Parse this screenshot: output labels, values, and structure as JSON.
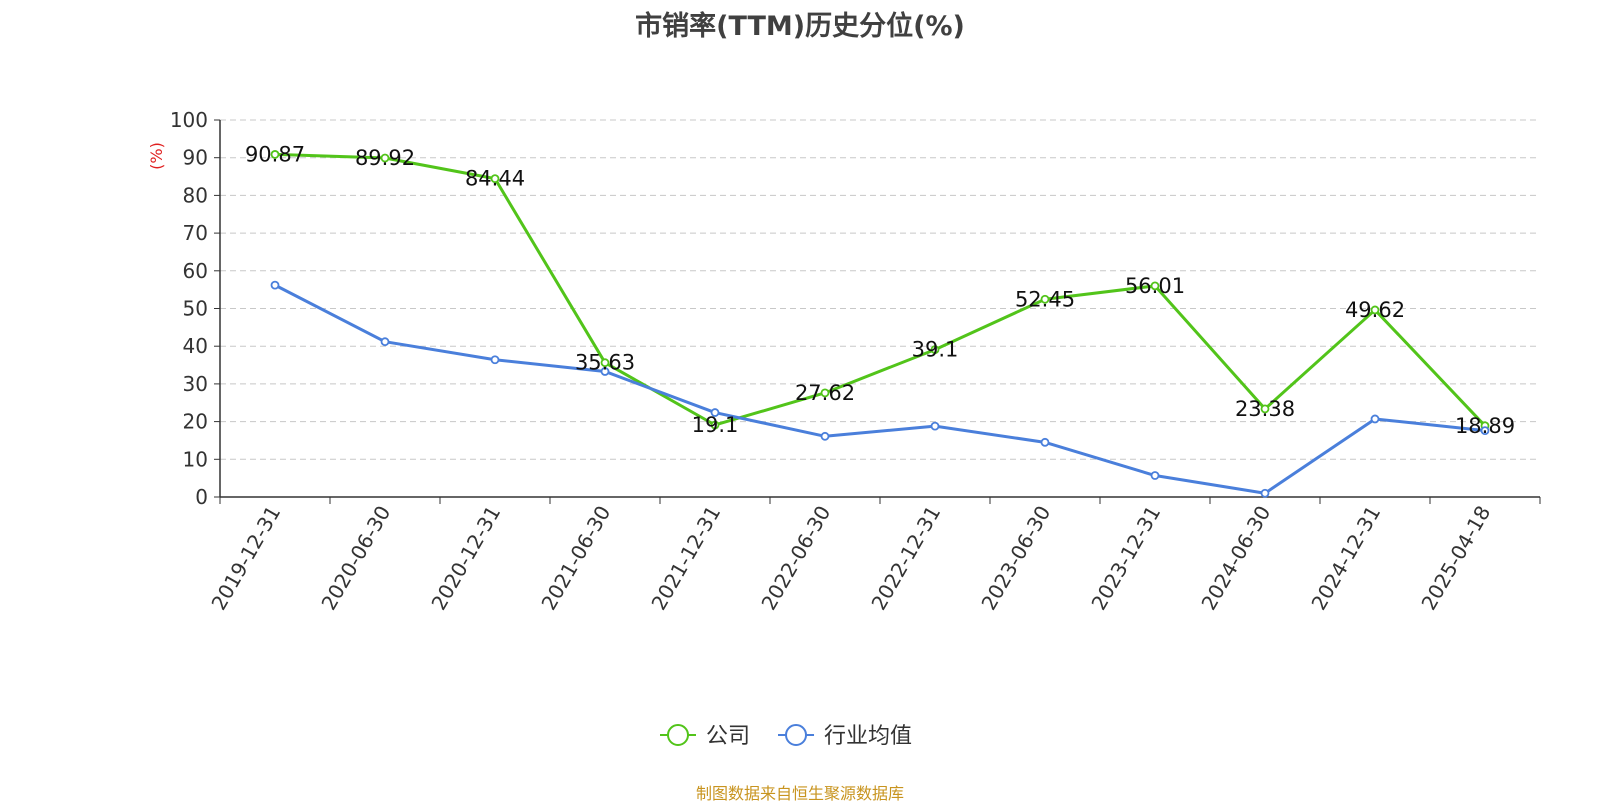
{
  "chart_data": {
    "type": "line",
    "title": "市销率(TTM)历史分位(%)",
    "ylabel": "(%)",
    "ylim": [
      0,
      100
    ],
    "yticks": [
      0,
      10,
      20,
      30,
      40,
      50,
      60,
      70,
      80,
      90,
      100
    ],
    "categories": [
      "2019-12-31",
      "2020-06-30",
      "2020-12-31",
      "2021-06-30",
      "2021-12-31",
      "2022-06-30",
      "2022-12-31",
      "2023-06-30",
      "2023-12-31",
      "2024-06-30",
      "2024-12-31",
      "2025-04-18"
    ],
    "series": [
      {
        "name": "公司",
        "color": "#52c41a",
        "labeled": true,
        "values": [
          90.87,
          89.92,
          84.44,
          35.63,
          19.1,
          27.62,
          39.1,
          52.45,
          56.01,
          23.38,
          49.62,
          18.89
        ]
      },
      {
        "name": "行业均值",
        "color": "#4a7fdb",
        "labeled": false,
        "values": [
          56.2,
          41.2,
          36.4,
          33.3,
          22.4,
          16.1,
          18.8,
          14.5,
          5.7,
          1.0,
          20.7,
          17.6
        ]
      }
    ],
    "grid": true,
    "legend_position": "bottom-center"
  },
  "source_text": "制图数据来自恒生聚源数据库"
}
